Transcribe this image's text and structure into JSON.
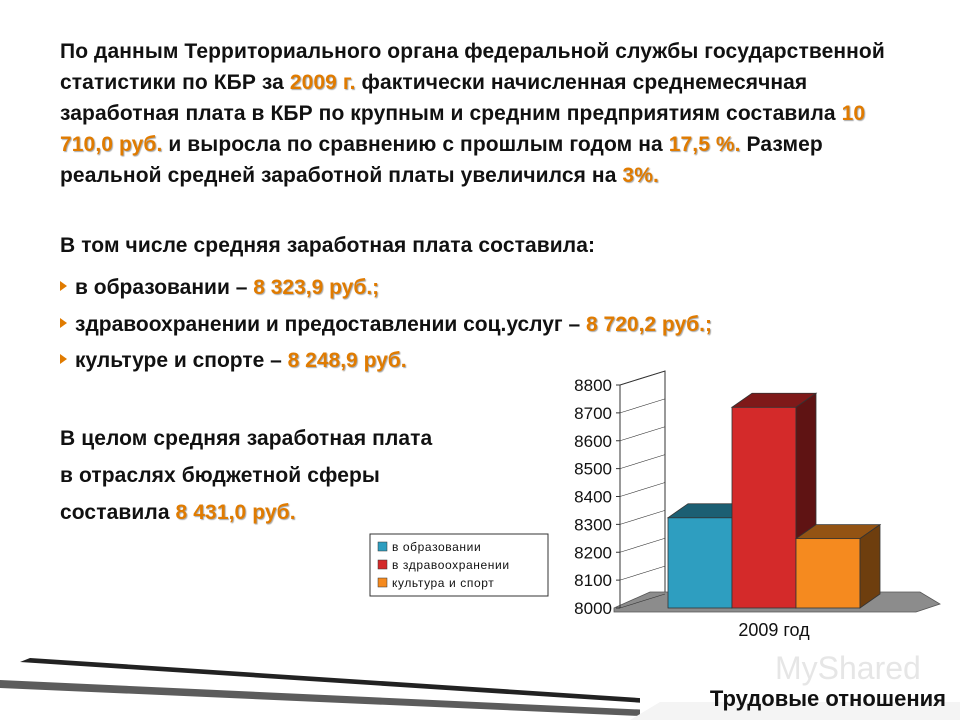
{
  "para1": {
    "t1": "По данным Территориального органа федеральной службы государственной статистики по КБР за ",
    "year": "2009 г.",
    "t2": " фактически начисленная среднемесячная заработная плата в КБР по крупным и средним предприятиям составила ",
    "salary": "10 710,0 руб.",
    "t3": " и выросла по сравнению с прошлым годом на ",
    "growth": "17,5 %.",
    "t4": " Размер реальной средней заработной платы увеличился на ",
    "real": "3%."
  },
  "intro": "В том числе средняя заработная плата составила:",
  "bullets": [
    {
      "label": "в образовании – ",
      "value": "8 323,9 руб.;"
    },
    {
      "label": "здравоохранении и предоставлении соц.услуг – ",
      "value": "8 720,2 руб.;"
    },
    {
      "label": "культуре и спорте – ",
      "value": "8 248,9 руб."
    }
  ],
  "summary": {
    "line1": "В целом средняя заработная плата",
    "line2": "в отраслях бюджетной сферы",
    "line3": "составила ",
    "value": "8 431,0 руб."
  },
  "footer": "Трудовые отношения",
  "watermark": "MyShared",
  "chart_data": {
    "type": "bar",
    "categories": [
      "2009 год"
    ],
    "series": [
      {
        "name": "в образовании",
        "values": [
          8323.9
        ],
        "color": "#2E9EC0"
      },
      {
        "name": "в здравоохранении",
        "values": [
          8720.2
        ],
        "color": "#D42A2A"
      },
      {
        "name": "культура и спорт",
        "values": [
          8248.9
        ],
        "color": "#F58A1F"
      }
    ],
    "xlabel": "2009 год",
    "ylim": [
      8000,
      8800
    ],
    "yticks": [
      8000,
      8100,
      8200,
      8300,
      8400,
      8500,
      8600,
      8700,
      8800
    ],
    "legend": "left"
  }
}
